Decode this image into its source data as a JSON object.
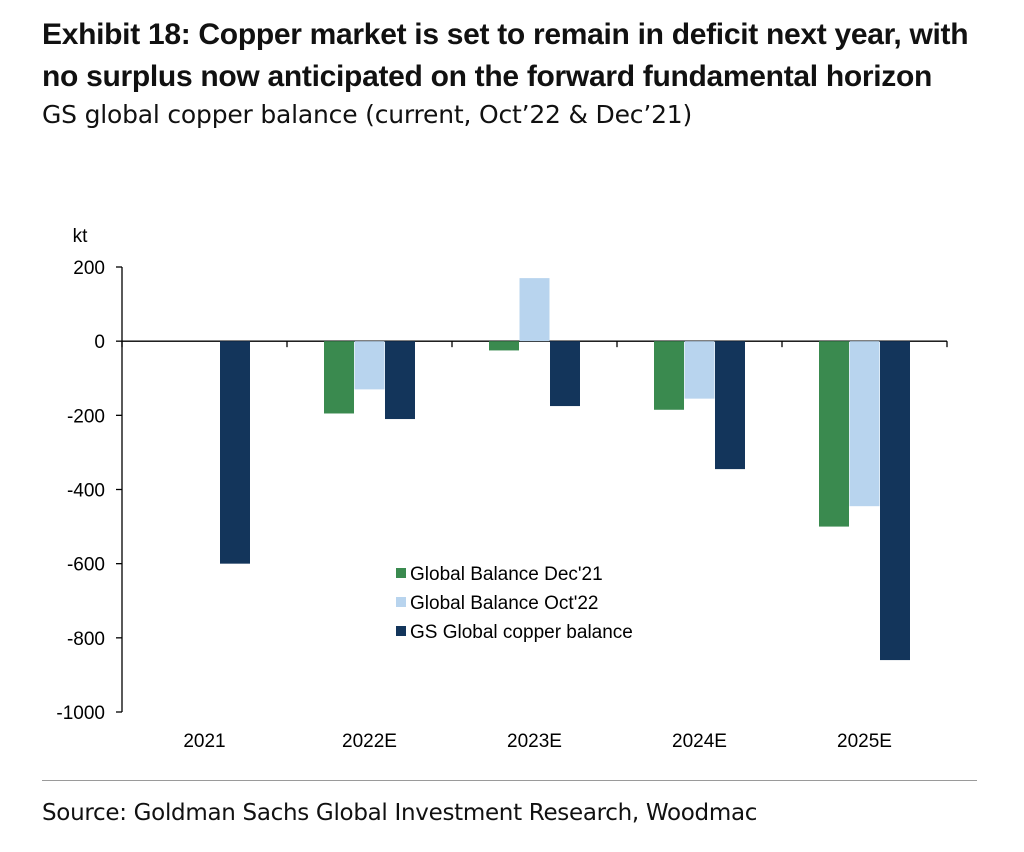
{
  "title": "Exhibit 18: Copper market is set to remain in deficit next year, with no surplus now anticipated on the forward fundamental horizon",
  "subtitle": "GS global copper balance (current, Oct’22 & Dec’21)",
  "source": "Source: Goldman Sachs Global Investment Research, Woodmac",
  "chart_data": {
    "type": "bar",
    "ylabel": "kt",
    "ylim": [
      -1000,
      200
    ],
    "yticks": [
      200,
      0,
      -200,
      -400,
      -600,
      -800,
      -1000
    ],
    "categories": [
      "2021",
      "2022E",
      "2023E",
      "2024E",
      "2025E"
    ],
    "series": [
      {
        "name": "Global Balance Dec'21",
        "color": "#3a8a4f",
        "values": [
          null,
          -195,
          -25,
          -185,
          -500
        ]
      },
      {
        "name": "Global Balance Oct'22",
        "color": "#b8d4ee",
        "values": [
          null,
          -130,
          170,
          -155,
          -445
        ]
      },
      {
        "name": "GS Global copper balance",
        "color": "#13355b",
        "values": [
          -600,
          -210,
          -175,
          -345,
          -860
        ]
      }
    ],
    "legend_position": "center-bottom",
    "grid": false
  }
}
